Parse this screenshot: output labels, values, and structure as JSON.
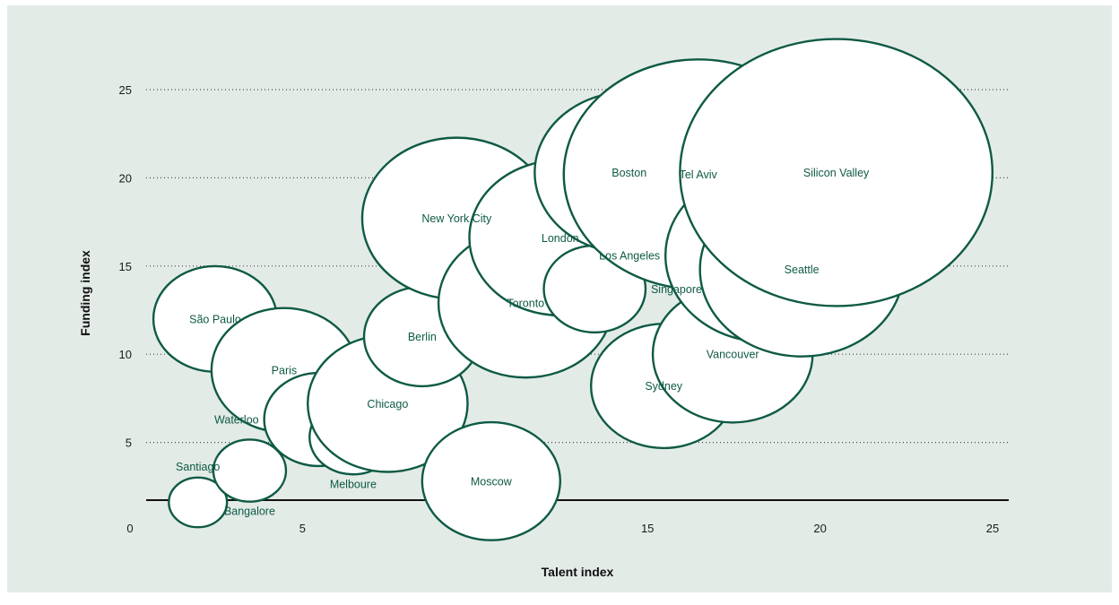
{
  "chart_data": {
    "type": "scatter",
    "xlabel": "Talent index",
    "ylabel": "Funding index",
    "xlim": [
      0,
      25
    ],
    "ylim": [
      0,
      25
    ],
    "xticks": [
      "0",
      "5",
      "10",
      "15",
      "20",
      "25"
    ],
    "yticks": [
      "5",
      "10",
      "15",
      "20",
      "25"
    ],
    "grid": "horizontal dotted",
    "points": [
      {
        "label": "Santiago",
        "x": 1.5,
        "y": 1.6,
        "size": 0.8,
        "label_pos": "above"
      },
      {
        "label": "Bangalore",
        "x": 3,
        "y": 3.4,
        "size": 1.0,
        "label_pos": "below"
      },
      {
        "label": "São Paulo",
        "x": 2,
        "y": 12,
        "size": 1.7,
        "label_pos": "center"
      },
      {
        "label": "Paris",
        "x": 4,
        "y": 9.1,
        "size": 2.0,
        "label_pos": "center"
      },
      {
        "label": "Waterloo",
        "x": 5,
        "y": 6.3,
        "size": 1.5,
        "label_pos": "left"
      },
      {
        "label": "Melboure",
        "x": 6,
        "y": 5.3,
        "size": 1.2,
        "label_pos": "below"
      },
      {
        "label": "Chicago",
        "x": 7,
        "y": 7.2,
        "size": 2.2,
        "label_pos": "center"
      },
      {
        "label": "Berlin",
        "x": 8,
        "y": 11,
        "size": 1.6,
        "label_pos": "center"
      },
      {
        "label": "New York City",
        "x": 9,
        "y": 17.7,
        "size": 2.6,
        "label_pos": "center"
      },
      {
        "label": "Moscow",
        "x": 10,
        "y": 2.8,
        "size": 1.9,
        "label_pos": "center"
      },
      {
        "label": "Toronto",
        "x": 11,
        "y": 12.9,
        "size": 2.4,
        "label_pos": "center"
      },
      {
        "label": "London",
        "x": 12,
        "y": 16.6,
        "size": 2.5,
        "label_pos": "center"
      },
      {
        "label": "Singapore",
        "x": 13,
        "y": 13.7,
        "size": 1.4,
        "label_pos": "right"
      },
      {
        "label": "Sydney",
        "x": 15,
        "y": 8.2,
        "size": 2.0,
        "label_pos": "center"
      },
      {
        "label": "Boston",
        "x": 14,
        "y": 20.3,
        "size": 2.6,
        "label_pos": "center"
      },
      {
        "label": "Tel Aviv",
        "x": 16,
        "y": 20.2,
        "size": 3.7,
        "label_pos": "center"
      },
      {
        "label": "Vancouver",
        "x": 17,
        "y": 10,
        "size": 2.2,
        "label_pos": "center"
      },
      {
        "label": "Los Angeles",
        "x": 18,
        "y": 15.6,
        "size": 2.8,
        "label_pos": "left"
      },
      {
        "label": "Seattle",
        "x": 19,
        "y": 14.8,
        "size": 2.8,
        "label_pos": "center"
      },
      {
        "label": "Silicon Valley",
        "x": 20,
        "y": 20.3,
        "size": 4.3,
        "label_pos": "center"
      }
    ]
  }
}
